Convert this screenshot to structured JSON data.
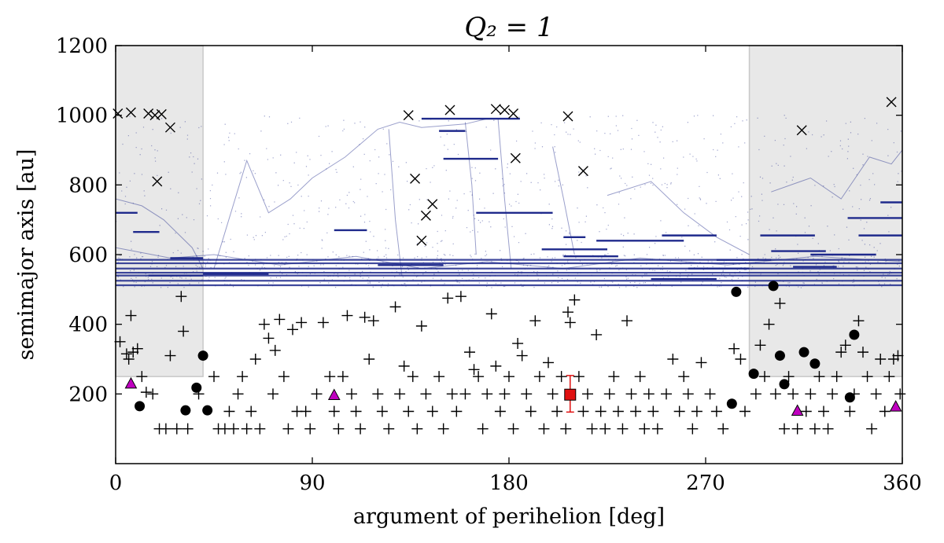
{
  "chart_data": {
    "type": "scatter",
    "title": "Q₂ = 1",
    "xlabel": "argument of perihelion [deg]",
    "ylabel": "semimajor axis [au]",
    "xlim": [
      0,
      360
    ],
    "ylim": [
      0,
      1200
    ],
    "xticks": [
      "0",
      "90",
      "180",
      "270",
      "360"
    ],
    "yticks": [
      "200",
      "400",
      "600",
      "800",
      "1000",
      "1200"
    ],
    "shaded_regions": [
      {
        "x": [
          0,
          40
        ],
        "y": [
          250,
          1200
        ],
        "color": "#e8e8e8"
      },
      {
        "x": [
          290,
          360
        ],
        "y": [
          250,
          1200
        ],
        "color": "#e8e8e8"
      }
    ],
    "colors": {
      "track": "#1f2a8c",
      "marker": "#000000",
      "triangle": "#c000c0",
      "square": "#e01010"
    },
    "series": [
      {
        "name": "cross",
        "marker": "x",
        "points": [
          [
            1,
            1005
          ],
          [
            7,
            1008
          ],
          [
            15,
            1005
          ],
          [
            18,
            1000
          ],
          [
            21,
            1003
          ],
          [
            25,
            965
          ],
          [
            19,
            810
          ],
          [
            134,
            1000
          ],
          [
            137,
            818
          ],
          [
            140,
            640
          ],
          [
            142,
            712
          ],
          [
            145,
            745
          ],
          [
            153,
            1015
          ],
          [
            174,
            1018
          ],
          [
            178,
            1015
          ],
          [
            182,
            1005
          ],
          [
            183,
            877
          ],
          [
            207,
            997
          ],
          [
            214,
            840
          ],
          [
            314,
            957
          ],
          [
            355,
            1038
          ]
        ]
      },
      {
        "name": "circle",
        "marker": "o",
        "points": [
          [
            11,
            165
          ],
          [
            32,
            153
          ],
          [
            37,
            218
          ],
          [
            40,
            310
          ],
          [
            42,
            153
          ],
          [
            282,
            172
          ],
          [
            284,
            493
          ],
          [
            292,
            258
          ],
          [
            301,
            510
          ],
          [
            304,
            310
          ],
          [
            306,
            228
          ],
          [
            315,
            320
          ],
          [
            320,
            287
          ],
          [
            336,
            190
          ],
          [
            338,
            370
          ]
        ]
      },
      {
        "name": "triangle",
        "marker": "^",
        "points": [
          [
            7,
            228
          ],
          [
            100,
            195
          ],
          [
            312,
            150
          ],
          [
            357,
            162
          ]
        ]
      },
      {
        "name": "square",
        "marker": "s",
        "points": [
          [
            208,
            198
          ]
        ],
        "yerr": [
          50,
          55
        ]
      },
      {
        "name": "plus",
        "marker": "+",
        "points": [
          [
            2,
            350
          ],
          [
            5,
            315
          ],
          [
            6,
            300
          ],
          [
            7,
            425
          ],
          [
            8,
            320
          ],
          [
            10,
            330
          ],
          [
            12,
            250
          ],
          [
            14,
            205
          ],
          [
            17,
            200
          ],
          [
            20,
            100
          ],
          [
            23,
            100
          ],
          [
            25,
            310
          ],
          [
            28,
            100
          ],
          [
            30,
            480
          ],
          [
            31,
            380
          ],
          [
            33,
            100
          ],
          [
            38,
            200
          ],
          [
            45,
            250
          ],
          [
            47,
            100
          ],
          [
            50,
            100
          ],
          [
            52,
            150
          ],
          [
            54,
            100
          ],
          [
            56,
            200
          ],
          [
            58,
            250
          ],
          [
            60,
            100
          ],
          [
            62,
            150
          ],
          [
            64,
            300
          ],
          [
            66,
            100
          ],
          [
            68,
            400
          ],
          [
            70,
            360
          ],
          [
            72,
            200
          ],
          [
            73,
            325
          ],
          [
            75,
            414
          ],
          [
            77,
            250
          ],
          [
            79,
            100
          ],
          [
            81,
            385
          ],
          [
            83,
            150
          ],
          [
            85,
            405
          ],
          [
            87,
            150
          ],
          [
            89,
            100
          ],
          [
            92,
            200
          ],
          [
            95,
            405
          ],
          [
            98,
            250
          ],
          [
            100,
            150
          ],
          [
            102,
            100
          ],
          [
            104,
            250
          ],
          [
            106,
            425
          ],
          [
            108,
            200
          ],
          [
            110,
            150
          ],
          [
            112,
            100
          ],
          [
            114,
            420
          ],
          [
            116,
            300
          ],
          [
            118,
            410
          ],
          [
            120,
            200
          ],
          [
            122,
            150
          ],
          [
            125,
            100
          ],
          [
            128,
            450
          ],
          [
            130,
            200
          ],
          [
            132,
            280
          ],
          [
            134,
            150
          ],
          [
            136,
            250
          ],
          [
            138,
            100
          ],
          [
            140,
            395
          ],
          [
            142,
            200
          ],
          [
            145,
            150
          ],
          [
            148,
            250
          ],
          [
            150,
            100
          ],
          [
            152,
            475
          ],
          [
            154,
            200
          ],
          [
            156,
            150
          ],
          [
            158,
            480
          ],
          [
            160,
            200
          ],
          [
            162,
            320
          ],
          [
            164,
            270
          ],
          [
            166,
            250
          ],
          [
            168,
            100
          ],
          [
            170,
            200
          ],
          [
            172,
            430
          ],
          [
            174,
            280
          ],
          [
            176,
            150
          ],
          [
            178,
            200
          ],
          [
            180,
            250
          ],
          [
            182,
            100
          ],
          [
            184,
            345
          ],
          [
            186,
            310
          ],
          [
            188,
            200
          ],
          [
            190,
            150
          ],
          [
            192,
            410
          ],
          [
            194,
            250
          ],
          [
            196,
            100
          ],
          [
            198,
            290
          ],
          [
            200,
            200
          ],
          [
            202,
            150
          ],
          [
            204,
            250
          ],
          [
            206,
            100
          ],
          [
            207,
            435
          ],
          [
            208,
            405
          ],
          [
            210,
            470
          ],
          [
            212,
            250
          ],
          [
            214,
            150
          ],
          [
            216,
            200
          ],
          [
            218,
            100
          ],
          [
            220,
            370
          ],
          [
            222,
            150
          ],
          [
            224,
            100
          ],
          [
            226,
            200
          ],
          [
            228,
            250
          ],
          [
            230,
            150
          ],
          [
            232,
            100
          ],
          [
            234,
            410
          ],
          [
            236,
            200
          ],
          [
            238,
            150
          ],
          [
            240,
            250
          ],
          [
            242,
            100
          ],
          [
            244,
            200
          ],
          [
            246,
            150
          ],
          [
            248,
            100
          ],
          [
            252,
            200
          ],
          [
            255,
            300
          ],
          [
            258,
            150
          ],
          [
            260,
            250
          ],
          [
            262,
            200
          ],
          [
            264,
            100
          ],
          [
            266,
            150
          ],
          [
            268,
            290
          ],
          [
            272,
            200
          ],
          [
            275,
            150
          ],
          [
            278,
            100
          ],
          [
            283,
            330
          ],
          [
            286,
            300
          ],
          [
            288,
            150
          ],
          [
            293,
            200
          ],
          [
            295,
            340
          ],
          [
            297,
            250
          ],
          [
            299,
            400
          ],
          [
            302,
            200
          ],
          [
            304,
            460
          ],
          [
            306,
            100
          ],
          [
            308,
            250
          ],
          [
            310,
            200
          ],
          [
            312,
            100
          ],
          [
            316,
            150
          ],
          [
            318,
            200
          ],
          [
            320,
            100
          ],
          [
            322,
            250
          ],
          [
            324,
            150
          ],
          [
            326,
            100
          ],
          [
            328,
            200
          ],
          [
            330,
            250
          ],
          [
            332,
            320
          ],
          [
            334,
            340
          ],
          [
            336,
            150
          ],
          [
            338,
            200
          ],
          [
            340,
            410
          ],
          [
            342,
            320
          ],
          [
            344,
            250
          ],
          [
            346,
            100
          ],
          [
            348,
            200
          ],
          [
            350,
            300
          ],
          [
            352,
            150
          ],
          [
            354,
            250
          ],
          [
            356,
            300
          ],
          [
            358,
            310
          ],
          [
            359,
            200
          ]
        ]
      }
    ]
  }
}
